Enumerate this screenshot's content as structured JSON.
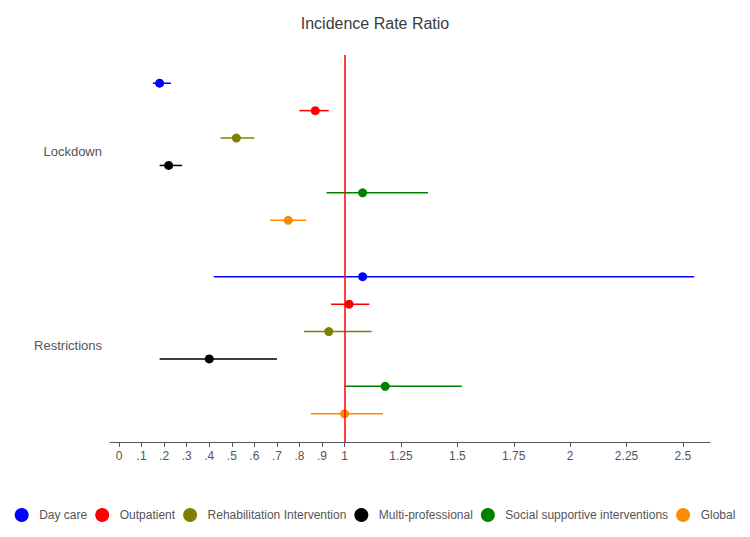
{
  "chart_data": {
    "type": "forest",
    "title": "Incidence Rate Ratio",
    "orientation": "horizontal",
    "categories": [
      "Lockdown",
      "Restrictions"
    ],
    "series": [
      {
        "name": "Day care",
        "color": "#0000FF",
        "values": [
          0.18,
          1.08
        ],
        "lo": [
          0.15,
          0.42
        ],
        "hi": [
          0.23,
          2.55
        ]
      },
      {
        "name": "Outpatient",
        "color": "#FF0000",
        "values": [
          0.87,
          1.02
        ],
        "lo": [
          0.8,
          0.94
        ],
        "hi": [
          0.93,
          1.11
        ]
      },
      {
        "name": "Rehabilitation Intervention",
        "color": "#808000",
        "values": [
          0.52,
          0.93
        ],
        "lo": [
          0.45,
          0.82
        ],
        "hi": [
          0.6,
          1.12
        ]
      },
      {
        "name": "Multi-professional",
        "color": "#000000",
        "values": [
          0.22,
          0.4
        ],
        "lo": [
          0.18,
          0.18
        ],
        "hi": [
          0.28,
          0.7
        ]
      },
      {
        "name": "Social supportive interventions",
        "color": "#008000",
        "values": [
          1.08,
          1.18
        ],
        "lo": [
          0.92,
          1.0
        ],
        "hi": [
          1.37,
          1.52
        ]
      },
      {
        "name": "Global",
        "color": "#FF8C00",
        "values": [
          0.75,
          1.0
        ],
        "lo": [
          0.67,
          0.85
        ],
        "hi": [
          0.83,
          1.17
        ]
      }
    ],
    "reference_line": {
      "x": 1.0,
      "color": "red"
    },
    "xlim": [
      -0.04,
      2.62
    ],
    "xticks": [
      0,
      {
        "value": 0.1,
        "label": ".1"
      },
      {
        "value": 0.2,
        "label": ".2"
      },
      {
        "value": 0.3,
        "label": ".3"
      },
      {
        "value": 0.4,
        "label": ".4"
      },
      {
        "value": 0.5,
        "label": ".5"
      },
      {
        "value": 0.6,
        "label": ".6"
      },
      {
        "value": 0.7,
        "label": ".7"
      },
      {
        "value": 0.8,
        "label": ".8"
      },
      {
        "value": 0.9,
        "label": ".9"
      },
      1,
      1.25,
      1.5,
      1.75,
      2,
      2.25,
      2.5
    ],
    "grid": false,
    "legend": "bottom",
    "marker": "circle"
  }
}
